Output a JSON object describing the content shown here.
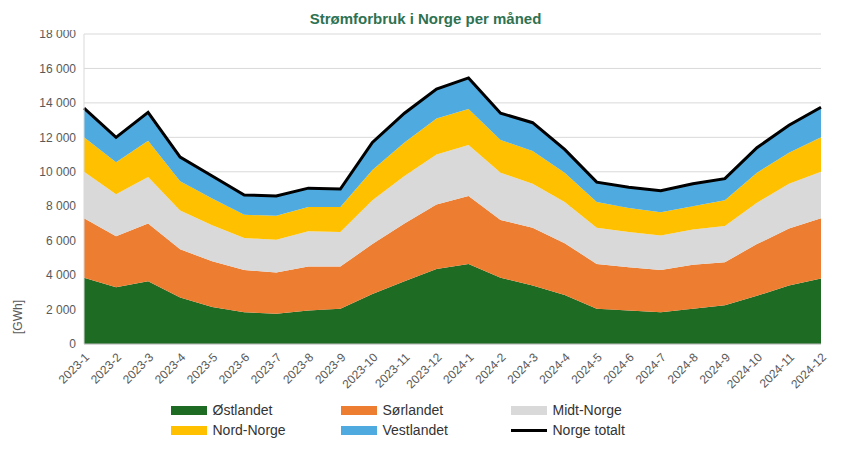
{
  "chart_data": {
    "type": "area",
    "title": "Strømforbruk i Norge per måned",
    "y_label": "[GWh]",
    "stacked": true,
    "grid": true,
    "legend": "bottom",
    "categories": [
      "2023-1",
      "2023-2",
      "2023-3",
      "2023-4",
      "2023-5",
      "2023-6",
      "2023-7",
      "2023-8",
      "2023-9",
      "2023-10",
      "2023-11",
      "2023-12",
      "2024-1",
      "2024-2",
      "2024-3",
      "2024-4",
      "2024-5",
      "2024-6",
      "2024-7",
      "2024-8",
      "2024-9",
      "2024-10",
      "2024-11",
      "2024-12"
    ],
    "ylim": [
      0,
      18000
    ],
    "yticks": [
      0,
      {
        "value": 2000,
        "label": "2 000"
      },
      {
        "value": 4000,
        "label": "4 000"
      },
      {
        "value": 6000,
        "label": "6 000"
      },
      {
        "value": 8000,
        "label": "8 000"
      },
      {
        "value": 10000,
        "label": "10 000"
      },
      {
        "value": 12000,
        "label": "12 000"
      },
      {
        "value": 14000,
        "label": "14 000"
      },
      {
        "value": 16000,
        "label": "16 000"
      },
      {
        "value": 18000,
        "label": "18 000"
      }
    ],
    "series": [
      {
        "name": "Østlandet",
        "type": "area",
        "color": "#1e6b24",
        "values": [
          3850,
          3300,
          3650,
          2700,
          2150,
          1850,
          1750,
          1950,
          2050,
          2900,
          3650,
          4350,
          4650,
          3850,
          3400,
          2850,
          2050,
          1950,
          1850,
          2050,
          2250,
          2800,
          3400,
          3800
        ]
      },
      {
        "name": "Sørlandet",
        "type": "area",
        "color": "#ed7d31",
        "values": [
          3450,
          2950,
          3350,
          2800,
          2650,
          2450,
          2400,
          2550,
          2450,
          2900,
          3350,
          3750,
          3950,
          3350,
          3350,
          3000,
          2600,
          2500,
          2450,
          2550,
          2500,
          3000,
          3300,
          3500
        ]
      },
      {
        "name": "Midt-Norge",
        "type": "area",
        "color": "#d9d9d9",
        "values": [
          2700,
          2450,
          2700,
          2250,
          2100,
          1850,
          1900,
          2050,
          2000,
          2550,
          2750,
          2900,
          2950,
          2750,
          2550,
          2400,
          2100,
          2050,
          2000,
          2050,
          2100,
          2400,
          2600,
          2700
        ]
      },
      {
        "name": "Nord-Norge",
        "type": "area",
        "color": "#ffc000",
        "values": [
          2000,
          1850,
          2100,
          1700,
          1550,
          1350,
          1400,
          1400,
          1450,
          1750,
          1950,
          2100,
          2100,
          1900,
          1900,
          1700,
          1500,
          1400,
          1350,
          1350,
          1500,
          1750,
          1800,
          2000
        ]
      },
      {
        "name": "Vestlandet",
        "type": "area",
        "color": "#4eaadf",
        "values": [
          1700,
          1450,
          1650,
          1400,
          1300,
          1150,
          1150,
          1100,
          1050,
          1600,
          1700,
          1700,
          1800,
          1550,
          1650,
          1350,
          1150,
          1200,
          1250,
          1300,
          1250,
          1450,
          1600,
          1750
        ]
      },
      {
        "name": "Norge totalt",
        "type": "line",
        "color": "#000000",
        "values": [
          13700,
          12000,
          13450,
          10850,
          9750,
          8650,
          8600,
          9050,
          9000,
          11700,
          13400,
          14800,
          15450,
          13400,
          12850,
          11300,
          9400,
          9100,
          8900,
          9300,
          9600,
          11400,
          12700,
          13750
        ]
      }
    ]
  }
}
